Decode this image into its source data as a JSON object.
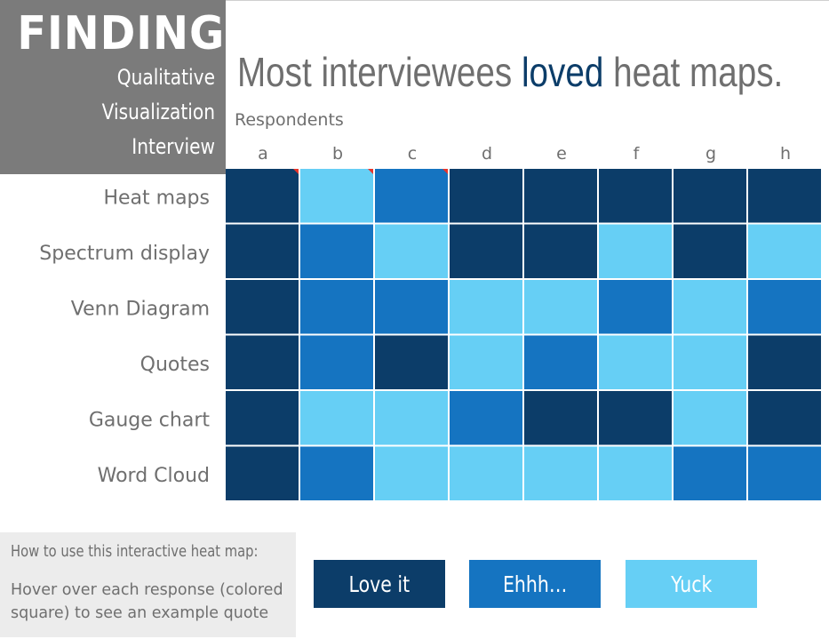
{
  "header": {
    "findings_label": "FINDINGS",
    "subtitle_lines": [
      "Qualitative",
      "Visualization",
      "Interview"
    ]
  },
  "headline": {
    "prefix": "Most interviewees ",
    "emphasis": "loved",
    "suffix": " heat maps."
  },
  "colors": {
    "love": "#0c3d69",
    "ehhh": "#1574c1",
    "yuck": "#66cff5",
    "marker": "#e8352a",
    "title_box": "#7b7b7b",
    "text": "#6f6f6f",
    "howto_box": "#ececec"
  },
  "chart_data": {
    "type": "heatmap",
    "title": "Most interviewees loved heat maps.",
    "xlabel": "Respondents",
    "ylabel": "",
    "x": [
      "a",
      "b",
      "c",
      "d",
      "e",
      "f",
      "g",
      "h"
    ],
    "y": [
      "Heat maps",
      "Spectrum display",
      "Venn Diagram",
      "Quotes",
      "Gauge chart",
      "Word Cloud"
    ],
    "scale": [
      "Love it",
      "Ehhh...",
      "Yuck"
    ],
    "values": [
      [
        "Love it",
        "Yuck",
        "Ehhh...",
        "Love it",
        "Love it",
        "Love it",
        "Love it",
        "Love it"
      ],
      [
        "Love it",
        "Ehhh...",
        "Yuck",
        "Love it",
        "Love it",
        "Yuck",
        "Love it",
        "Yuck"
      ],
      [
        "Love it",
        "Ehhh...",
        "Ehhh...",
        "Yuck",
        "Yuck",
        "Ehhh...",
        "Yuck",
        "Ehhh..."
      ],
      [
        "Love it",
        "Ehhh...",
        "Love it",
        "Yuck",
        "Ehhh...",
        "Yuck",
        "Yuck",
        "Love it"
      ],
      [
        "Love it",
        "Yuck",
        "Yuck",
        "Ehhh...",
        "Love it",
        "Love it",
        "Yuck",
        "Love it"
      ],
      [
        "Love it",
        "Ehhh...",
        "Yuck",
        "Yuck",
        "Yuck",
        "Yuck",
        "Ehhh...",
        "Ehhh..."
      ]
    ],
    "comment_markers": [
      {
        "row": "Heat maps",
        "column": "a"
      },
      {
        "row": "Heat maps",
        "column": "b"
      },
      {
        "row": "Heat maps",
        "column": "c"
      }
    ],
    "legend": {
      "labels": [
        "Love it",
        "Ehhh...",
        "Yuck"
      ],
      "placement": "bottom"
    },
    "grid": true
  },
  "legend": {
    "love_label": "Love it",
    "ehhh_label": "Ehhh…",
    "yuck_label": "Yuck"
  },
  "howto": {
    "title": "How to use this interactive heat map:",
    "body": "Hover over each response (colored square) to see an example quote"
  }
}
